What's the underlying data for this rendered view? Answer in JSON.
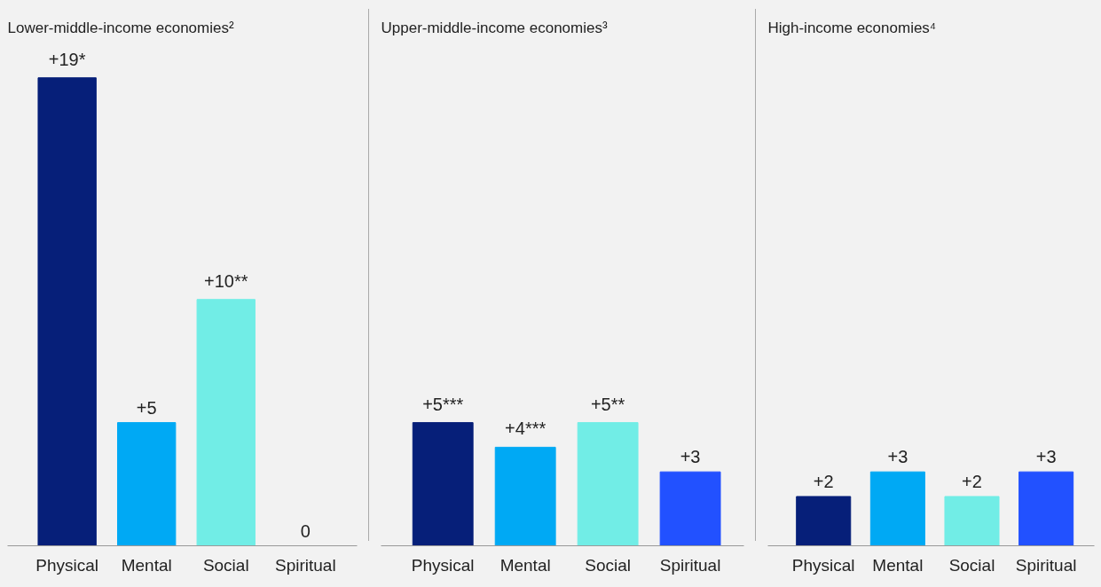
{
  "chart_data": [
    {
      "type": "bar",
      "title": "Lower-middle-income economies²",
      "categories": [
        "Physical",
        "Mental",
        "Social",
        "Spiritual"
      ],
      "values": [
        19,
        5,
        10,
        0
      ],
      "colors": [
        "#061f79",
        "#00a9f4",
        "#71ede6",
        "#2251ff"
      ],
      "value_labels": [
        "+19*",
        "+5",
        "+10**",
        "0"
      ]
    },
    {
      "type": "bar",
      "title": "Upper-middle-income economies³",
      "categories": [
        "Physical",
        "Mental",
        "Social",
        "Spiritual"
      ],
      "values": [
        5,
        4,
        5,
        3
      ],
      "colors": [
        "#061f79",
        "#00a9f4",
        "#71ede6",
        "#2251ff"
      ],
      "value_labels": [
        "+5***",
        "+4***",
        "+5**",
        "+3"
      ]
    },
    {
      "type": "bar",
      "title": "High-income economies⁴",
      "categories": [
        "Physical",
        "Mental",
        "Social",
        "Spiritual"
      ],
      "values": [
        2,
        3,
        2,
        3
      ],
      "colors": [
        "#061f79",
        "#00a9f4",
        "#71ede6",
        "#2251ff"
      ],
      "value_labels": [
        "+2",
        "+3",
        "+2",
        "+3"
      ]
    }
  ]
}
